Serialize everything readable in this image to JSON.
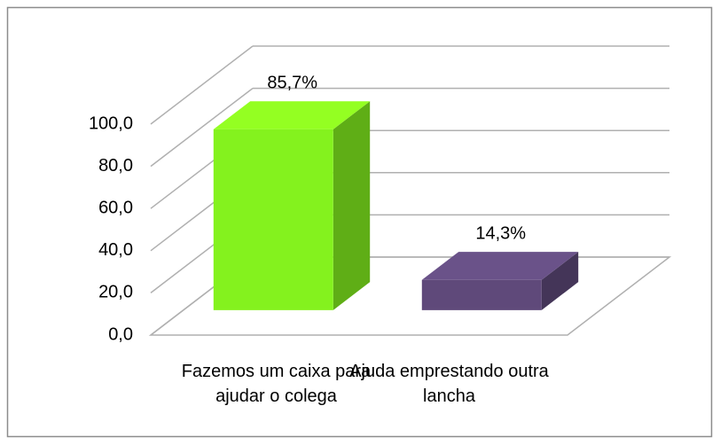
{
  "chart_data": {
    "type": "bar",
    "categories": [
      "Fazemos um caixa para ajudar o colega",
      "Ajuda emprestando outra lancha"
    ],
    "values": [
      85.7,
      14.3
    ],
    "value_labels": [
      "85,7%",
      "14,3%"
    ],
    "colors": [
      "#84f21e",
      "#5f497a"
    ],
    "ylim": [
      0,
      100
    ],
    "yticks": [
      {
        "value": 0,
        "label": "0,0"
      },
      {
        "value": 20,
        "label": "20,0"
      },
      {
        "value": 40,
        "label": "40,0"
      },
      {
        "value": 60,
        "label": "60,0"
      },
      {
        "value": 80,
        "label": "80,0"
      },
      {
        "value": 100,
        "label": "100,0"
      }
    ],
    "grid": true
  }
}
